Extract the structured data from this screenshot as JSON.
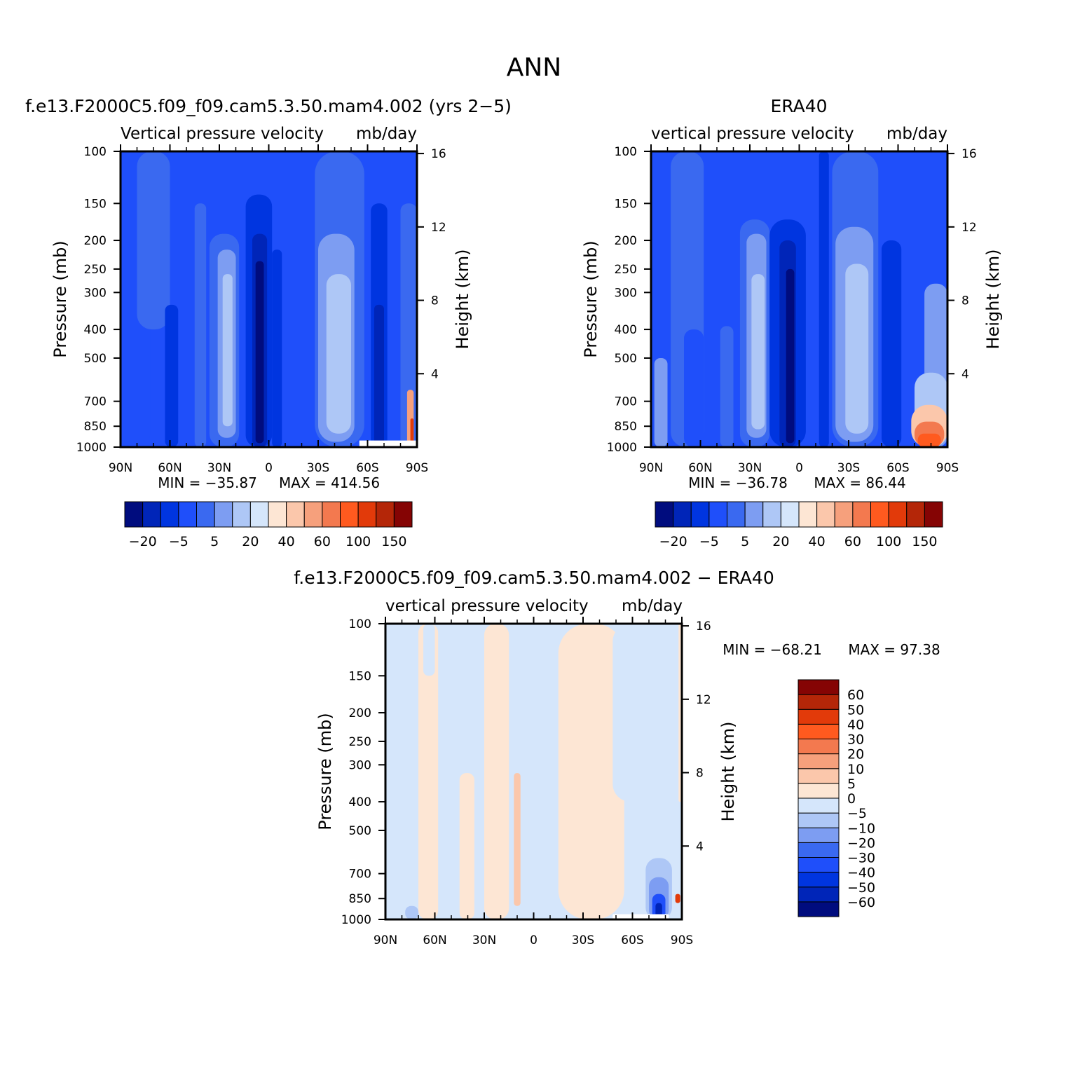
{
  "page_title": "ANN",
  "scale": {
    "main": {
      "boundaries": [
        -20,
        -10,
        -5,
        0,
        5,
        10,
        20,
        30,
        40,
        50,
        60,
        80,
        100,
        120,
        150
      ],
      "colors": [
        "#000c7e",
        "#0025b8",
        "#0035e0",
        "#1f4ffa",
        "#3a69f0",
        "#7d9df2",
        "#aec7f6",
        "#d5e6fb",
        "#fde6d4",
        "#fbc7ab",
        "#f6a07c",
        "#f3794f",
        "#ff5a1f",
        "#e23a0a",
        "#b42608",
        "#850404"
      ],
      "labels": [
        "-20",
        "-5",
        "5",
        "20",
        "40",
        "60",
        "100",
        "150"
      ],
      "label_positions": [
        0,
        2,
        4,
        6,
        8,
        10,
        12,
        14
      ]
    },
    "diff": {
      "boundaries": [
        -60,
        -50,
        -40,
        -30,
        -20,
        -10,
        -5,
        0,
        5,
        10,
        20,
        30,
        40,
        50,
        60
      ],
      "colors": [
        "#000c7e",
        "#0025b8",
        "#0035e0",
        "#1f4ffa",
        "#3a69f0",
        "#7d9df2",
        "#aec7f6",
        "#d5e6fb",
        "#fde6d4",
        "#fbc7ab",
        "#f6a07c",
        "#f3794f",
        "#ff5a1f",
        "#e23a0a",
        "#b42608",
        "#850404"
      ],
      "labels": [
        "60",
        "50",
        "40",
        "30",
        "20",
        "10",
        "5",
        "0",
        "-5",
        "-10",
        "-20",
        "-30",
        "-40",
        "-50",
        "-60"
      ]
    }
  },
  "chart_data": [
    {
      "type": "heatmap",
      "id": "model",
      "title": "f.e13.F2000C5.f09_f09.cam5.3.50.mam4.002 (yrs 2-5)",
      "subtitle_left": "Vertical pressure velocity",
      "subtitle_right": "mb/day",
      "xlabel": "",
      "ylabel": "Pressure (mb)",
      "ylabel_right": "Height (km)",
      "x_ticks": [
        "90N",
        "60N",
        "30N",
        "0",
        "30S",
        "60S",
        "90S"
      ],
      "x_range": [
        90,
        -90
      ],
      "y_ticks": [
        100,
        150,
        200,
        250,
        300,
        400,
        500,
        700,
        850,
        1000
      ],
      "y_range": [
        100,
        1000
      ],
      "y_scale": "log",
      "height_ticks": [
        16,
        12,
        8,
        4
      ],
      "min_label": "MIN = -35.87",
      "max_label": "MAX = 414.56",
      "scale": "main",
      "field": {
        "background_class": 3,
        "bands": [
          {
            "lat": [
              90,
              72
            ],
            "p": [
              100,
              1000
            ],
            "class": 3
          },
          {
            "lat": [
              80,
              60
            ],
            "p": [
              100,
              400
            ],
            "class": 4
          },
          {
            "lat": [
              63,
              55
            ],
            "p": [
              330,
              1000
            ],
            "class": 2
          },
          {
            "lat": [
              45,
              38
            ],
            "p": [
              150,
              1000
            ],
            "class": 4
          },
          {
            "lat": [
              36,
              18
            ],
            "p": [
              190,
              1000
            ],
            "class": 4
          },
          {
            "lat": [
              31,
              20
            ],
            "p": [
              215,
              930
            ],
            "class": 5
          },
          {
            "lat": [
              28,
              22
            ],
            "p": [
              260,
              850
            ],
            "class": 6
          },
          {
            "lat": [
              14,
              -2
            ],
            "p": [
              140,
              1000
            ],
            "class": 2
          },
          {
            "lat": [
              10,
              1
            ],
            "p": [
              190,
              1000
            ],
            "class": 1
          },
          {
            "lat": [
              8,
              3
            ],
            "p": [
              235,
              970
            ],
            "class": 0
          },
          {
            "lat": [
              -2,
              -8
            ],
            "p": [
              215,
              1000
            ],
            "class": 2
          },
          {
            "lat": [
              -28,
              -58
            ],
            "p": [
              100,
              1000
            ],
            "class": 4
          },
          {
            "lat": [
              -30,
              -52
            ],
            "p": [
              190,
              960
            ],
            "class": 5
          },
          {
            "lat": [
              -35,
              -50
            ],
            "p": [
              260,
              900
            ],
            "class": 6
          },
          {
            "lat": [
              -62,
              -72
            ],
            "p": [
              150,
              1000
            ],
            "class": 2
          },
          {
            "lat": [
              -64,
              -70
            ],
            "p": [
              330,
              1000
            ],
            "class": 1
          },
          {
            "lat": [
              -80,
              -90
            ],
            "p": [
              150,
              1000
            ],
            "class": 4
          },
          {
            "lat": [
              -84,
              -88
            ],
            "p": [
              640,
              1000
            ],
            "class": 10
          },
          {
            "lat": [
              -86,
              -88
            ],
            "p": [
              800,
              1000
            ],
            "class": 13
          }
        ],
        "missing": [
          {
            "lat": [
              -55,
              -90
            ],
            "p": [
              950,
              1000
            ]
          }
        ]
      }
    },
    {
      "type": "heatmap",
      "id": "obs",
      "title": "ERA40",
      "subtitle_left": "vertical pressure velocity",
      "subtitle_right": "mb/day",
      "xlabel": "",
      "ylabel": "Pressure (mb)",
      "ylabel_right": "Height (km)",
      "x_ticks": [
        "90N",
        "60N",
        "30N",
        "0",
        "30S",
        "60S",
        "90S"
      ],
      "x_range": [
        90,
        -90
      ],
      "y_ticks": [
        100,
        150,
        200,
        250,
        300,
        400,
        500,
        700,
        850,
        1000
      ],
      "y_range": [
        100,
        1000
      ],
      "y_scale": "log",
      "height_ticks": [
        16,
        12,
        8,
        4
      ],
      "min_label": "MIN = -36.78",
      "max_label": "MAX = 86.44",
      "scale": "main",
      "field": {
        "background_class": 3,
        "bands": [
          {
            "lat": [
              78,
              58
            ],
            "p": [
              100,
              1000
            ],
            "class": 4
          },
          {
            "lat": [
              88,
              80
            ],
            "p": [
              500,
              1000
            ],
            "class": 5
          },
          {
            "lat": [
              70,
              58
            ],
            "p": [
              400,
              1000
            ],
            "class": 3
          },
          {
            "lat": [
              48,
              40
            ],
            "p": [
              390,
              1000
            ],
            "class": 4
          },
          {
            "lat": [
              36,
              18
            ],
            "p": [
              170,
              1000
            ],
            "class": 4
          },
          {
            "lat": [
              32,
              20
            ],
            "p": [
              190,
              930
            ],
            "class": 5
          },
          {
            "lat": [
              29,
              21
            ],
            "p": [
              260,
              870
            ],
            "class": 6
          },
          {
            "lat": [
              18,
              -4
            ],
            "p": [
              170,
              1000
            ],
            "class": 2
          },
          {
            "lat": [
              12,
              2
            ],
            "p": [
              200,
              1000
            ],
            "class": 1
          },
          {
            "lat": [
              8,
              3
            ],
            "p": [
              250,
              970
            ],
            "class": 0
          },
          {
            "lat": [
              -12,
              -18
            ],
            "p": [
              100,
              1000
            ],
            "class": 2
          },
          {
            "lat": [
              -20,
              -48
            ],
            "p": [
              100,
              1000
            ],
            "class": 4
          },
          {
            "lat": [
              -22,
              -45
            ],
            "p": [
              180,
              960
            ],
            "class": 5
          },
          {
            "lat": [
              -28,
              -42
            ],
            "p": [
              240,
              900
            ],
            "class": 6
          },
          {
            "lat": [
              -50,
              -62
            ],
            "p": [
              200,
              1000
            ],
            "class": 2
          },
          {
            "lat": [
              -76,
              -90
            ],
            "p": [
              280,
              1000
            ],
            "class": 5
          },
          {
            "lat": [
              -70,
              -90
            ],
            "p": [
              560,
              1000
            ],
            "class": 6
          },
          {
            "lat": [
              -68,
              -90
            ],
            "p": [
              720,
              1000
            ],
            "class": 9
          },
          {
            "lat": [
              -70,
              -88
            ],
            "p": [
              820,
              1000
            ],
            "class": 11
          },
          {
            "lat": [
              -72,
              -86
            ],
            "p": [
              900,
              1000
            ],
            "class": 12
          }
        ],
        "missing": []
      }
    },
    {
      "type": "heatmap",
      "id": "diff",
      "title": "f.e13.F2000C5.f09_f09.cam5.3.50.mam4.002 - ERA40",
      "subtitle_left": "vertical pressure velocity",
      "subtitle_right": "mb/day",
      "xlabel": "",
      "ylabel": "Pressure (mb)",
      "ylabel_right": "Height (km)",
      "x_ticks": [
        "90N",
        "60N",
        "30N",
        "0",
        "30S",
        "60S",
        "90S"
      ],
      "x_range": [
        90,
        -90
      ],
      "y_ticks": [
        100,
        150,
        200,
        250,
        300,
        400,
        500,
        700,
        850,
        1000
      ],
      "y_range": [
        100,
        1000
      ],
      "y_scale": "log",
      "height_ticks": [
        16,
        12,
        8,
        4
      ],
      "min_label": "MIN = -68.21",
      "max_label": "MAX = 97.38",
      "scale": "diff",
      "field": {
        "background_class": 7,
        "bands": [
          {
            "lat": [
              70,
              58
            ],
            "p": [
              100,
              1000
            ],
            "class": 8
          },
          {
            "lat": [
              67,
              60
            ],
            "p": [
              100,
              150
            ],
            "class": 7
          },
          {
            "lat": [
              45,
              36
            ],
            "p": [
              320,
              1000
            ],
            "class": 8
          },
          {
            "lat": [
              30,
              15
            ],
            "p": [
              100,
              1000
            ],
            "class": 8
          },
          {
            "lat": [
              12,
              8
            ],
            "p": [
              320,
              900
            ],
            "class": 9
          },
          {
            "lat": [
              -15,
              -55
            ],
            "p": [
              100,
              1000
            ],
            "class": 8
          },
          {
            "lat": [
              -48,
              -72
            ],
            "p": [
              100,
              400
            ],
            "class": 7
          },
          {
            "lat": [
              -88,
              -90
            ],
            "p": [
              100,
              400
            ],
            "class": 8
          },
          {
            "lat": [
              78,
              70
            ],
            "p": [
              900,
              1000
            ],
            "class": 6
          },
          {
            "lat": [
              -68,
              -84
            ],
            "p": [
              620,
              1000
            ],
            "class": 6
          },
          {
            "lat": [
              -70,
              -82
            ],
            "p": [
              720,
              1000
            ],
            "class": 5
          },
          {
            "lat": [
              -72,
              -80
            ],
            "p": [
              820,
              1000
            ],
            "class": 3
          },
          {
            "lat": [
              -74,
              -78
            ],
            "p": [
              880,
              1000
            ],
            "class": 1
          },
          {
            "lat": [
              -86,
              -89
            ],
            "p": [
              820,
              880
            ],
            "class": 13
          }
        ],
        "missing": [
          {
            "lat": [
              -48,
              -82
            ],
            "p": [
              960,
              1000
            ]
          }
        ]
      }
    }
  ]
}
